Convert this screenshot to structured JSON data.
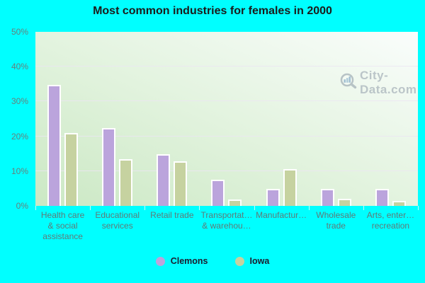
{
  "title": "Most common industries for females in 2000",
  "watermark": {
    "text": "City-Data.com",
    "icon": "magnifier-bar-chart-icon"
  },
  "colors": {
    "background": "#00ffff",
    "plot_gradient_top_right": "#fafdfc",
    "plot_gradient_bottom_left": "#cbe8c4",
    "gridline": "#ebe5f2",
    "axis_text": "#5f7a78",
    "title_text": "#1b1b1b",
    "clemons_bar": "#bba4dc",
    "iowa_bar": "#c6d2a0"
  },
  "chart_data": {
    "type": "bar",
    "title": "Most common industries for females in 2000",
    "categories": [
      "Health care & social assistance",
      "Educational services",
      "Retail trade",
      "Transportation & warehousing",
      "Manufacturing",
      "Wholesale trade",
      "Arts, entertainment, recreation"
    ],
    "categories_display": [
      [
        "Health care",
        "& social",
        "assistance"
      ],
      [
        "Educational",
        "services"
      ],
      [
        "Retail trade"
      ],
      [
        "Transportat…",
        "& warehou…"
      ],
      [
        "Manufactur…"
      ],
      [
        "Wholesale",
        "trade"
      ],
      [
        "Arts, enter…",
        "recreation"
      ]
    ],
    "series": [
      {
        "name": "Clemons",
        "color": "#bba4dc",
        "values": [
          34.8,
          22.4,
          14.8,
          7.5,
          4.8,
          4.8,
          4.8
        ]
      },
      {
        "name": "Iowa",
        "color": "#c6d2a0",
        "values": [
          21.0,
          13.4,
          12.9,
          1.8,
          10.6,
          2.0,
          1.4
        ]
      }
    ],
    "xlabel": "",
    "ylabel": "",
    "ylim": [
      0,
      50
    ],
    "yticks": [
      "0%",
      "10%",
      "20%",
      "30%",
      "40%",
      "50%"
    ],
    "grid": true,
    "legend_position": "bottom"
  }
}
